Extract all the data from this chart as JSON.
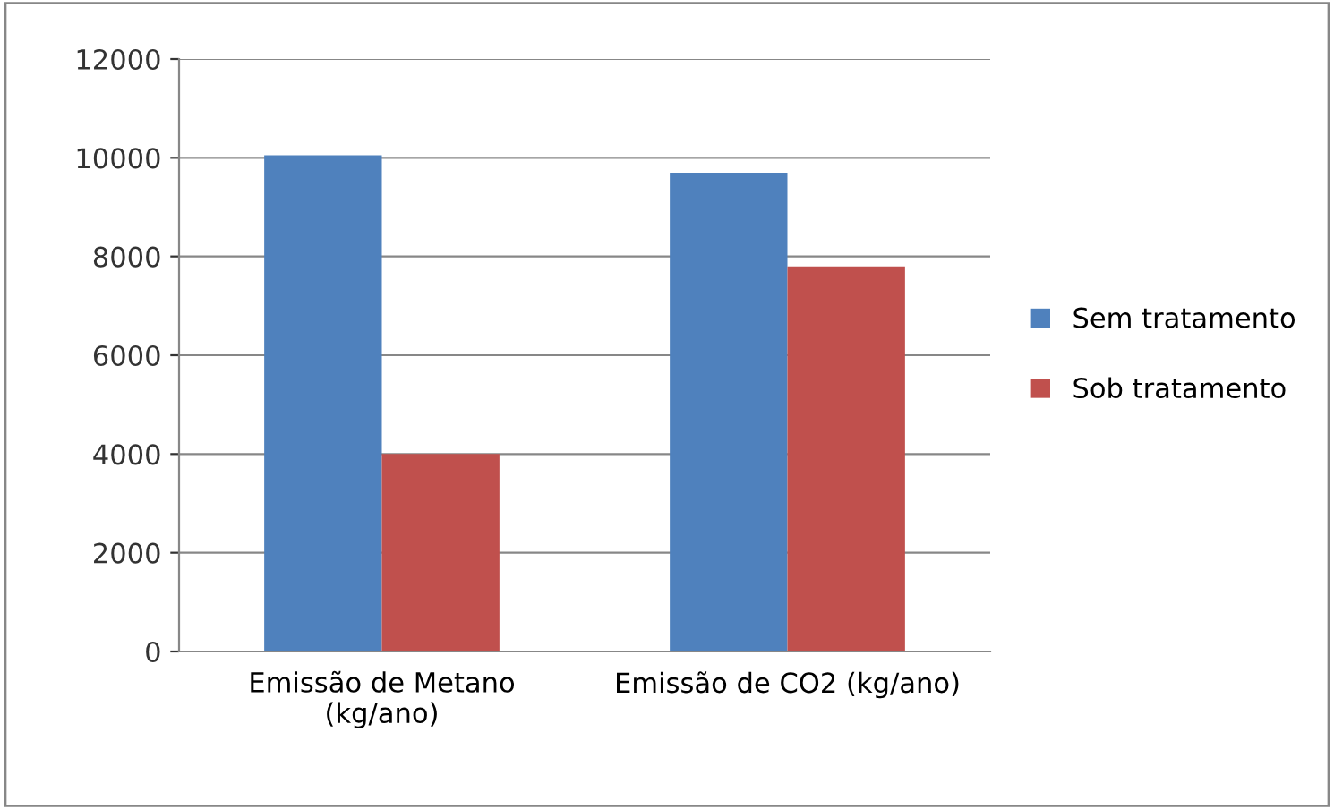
{
  "chart_data": {
    "type": "bar",
    "categories": [
      "Emissão de Metano\n(kg/ano)",
      "Emissão de CO2 (kg/ano)"
    ],
    "series": [
      {
        "name": "Sem tratamento",
        "color": "#4f81bd",
        "values": [
          10050,
          9700
        ]
      },
      {
        "name": "Sob tratamento",
        "color": "#c0504d",
        "values": [
          4000,
          7800
        ]
      }
    ],
    "ylim": [
      0,
      12000
    ],
    "yticks": [
      0,
      2000,
      4000,
      6000,
      8000,
      10000,
      12000
    ],
    "grid": "y",
    "legend": "right"
  }
}
